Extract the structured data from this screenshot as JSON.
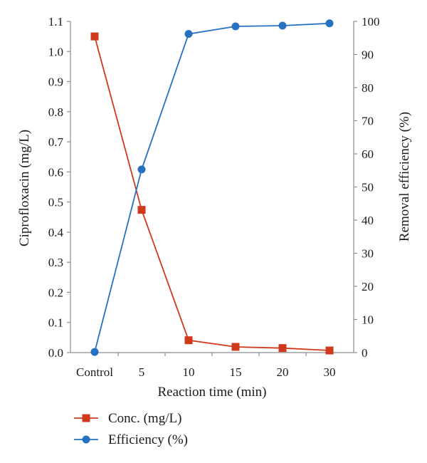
{
  "chart_data": {
    "type": "line",
    "title": "",
    "categories": [
      "Control",
      "5",
      "10",
      "15",
      "20",
      "30"
    ],
    "xlabel": "Reaction time (min)",
    "ylabel_left": "Ciprofloxacin (mg/L)",
    "ylabel_right": "Removal efficiency (%)",
    "ylim_left": [
      0,
      1.1
    ],
    "ylim_right": [
      0,
      100
    ],
    "yticks_left": [
      "0.0",
      "0.1",
      "0.2",
      "0.3",
      "0.4",
      "0.5",
      "0.6",
      "0.7",
      "0.8",
      "0.9",
      "1.0",
      "1.1"
    ],
    "yticks_right": [
      "0",
      "10",
      "20",
      "30",
      "40",
      "50",
      "60",
      "70",
      "80",
      "90",
      "100"
    ],
    "grid": false,
    "legend_position": "bottom",
    "series": [
      {
        "name": "Conc. (mg/L)",
        "axis": "left",
        "marker": "square",
        "color": "#d0391b",
        "values": [
          1.05,
          0.474,
          0.041,
          0.019,
          0.015,
          0.007
        ]
      },
      {
        "name": "Efficiency (%)",
        "axis": "right",
        "marker": "circle",
        "color": "#2672c0",
        "values": [
          0.2,
          55.3,
          96.2,
          98.5,
          98.7,
          99.4
        ]
      }
    ]
  }
}
